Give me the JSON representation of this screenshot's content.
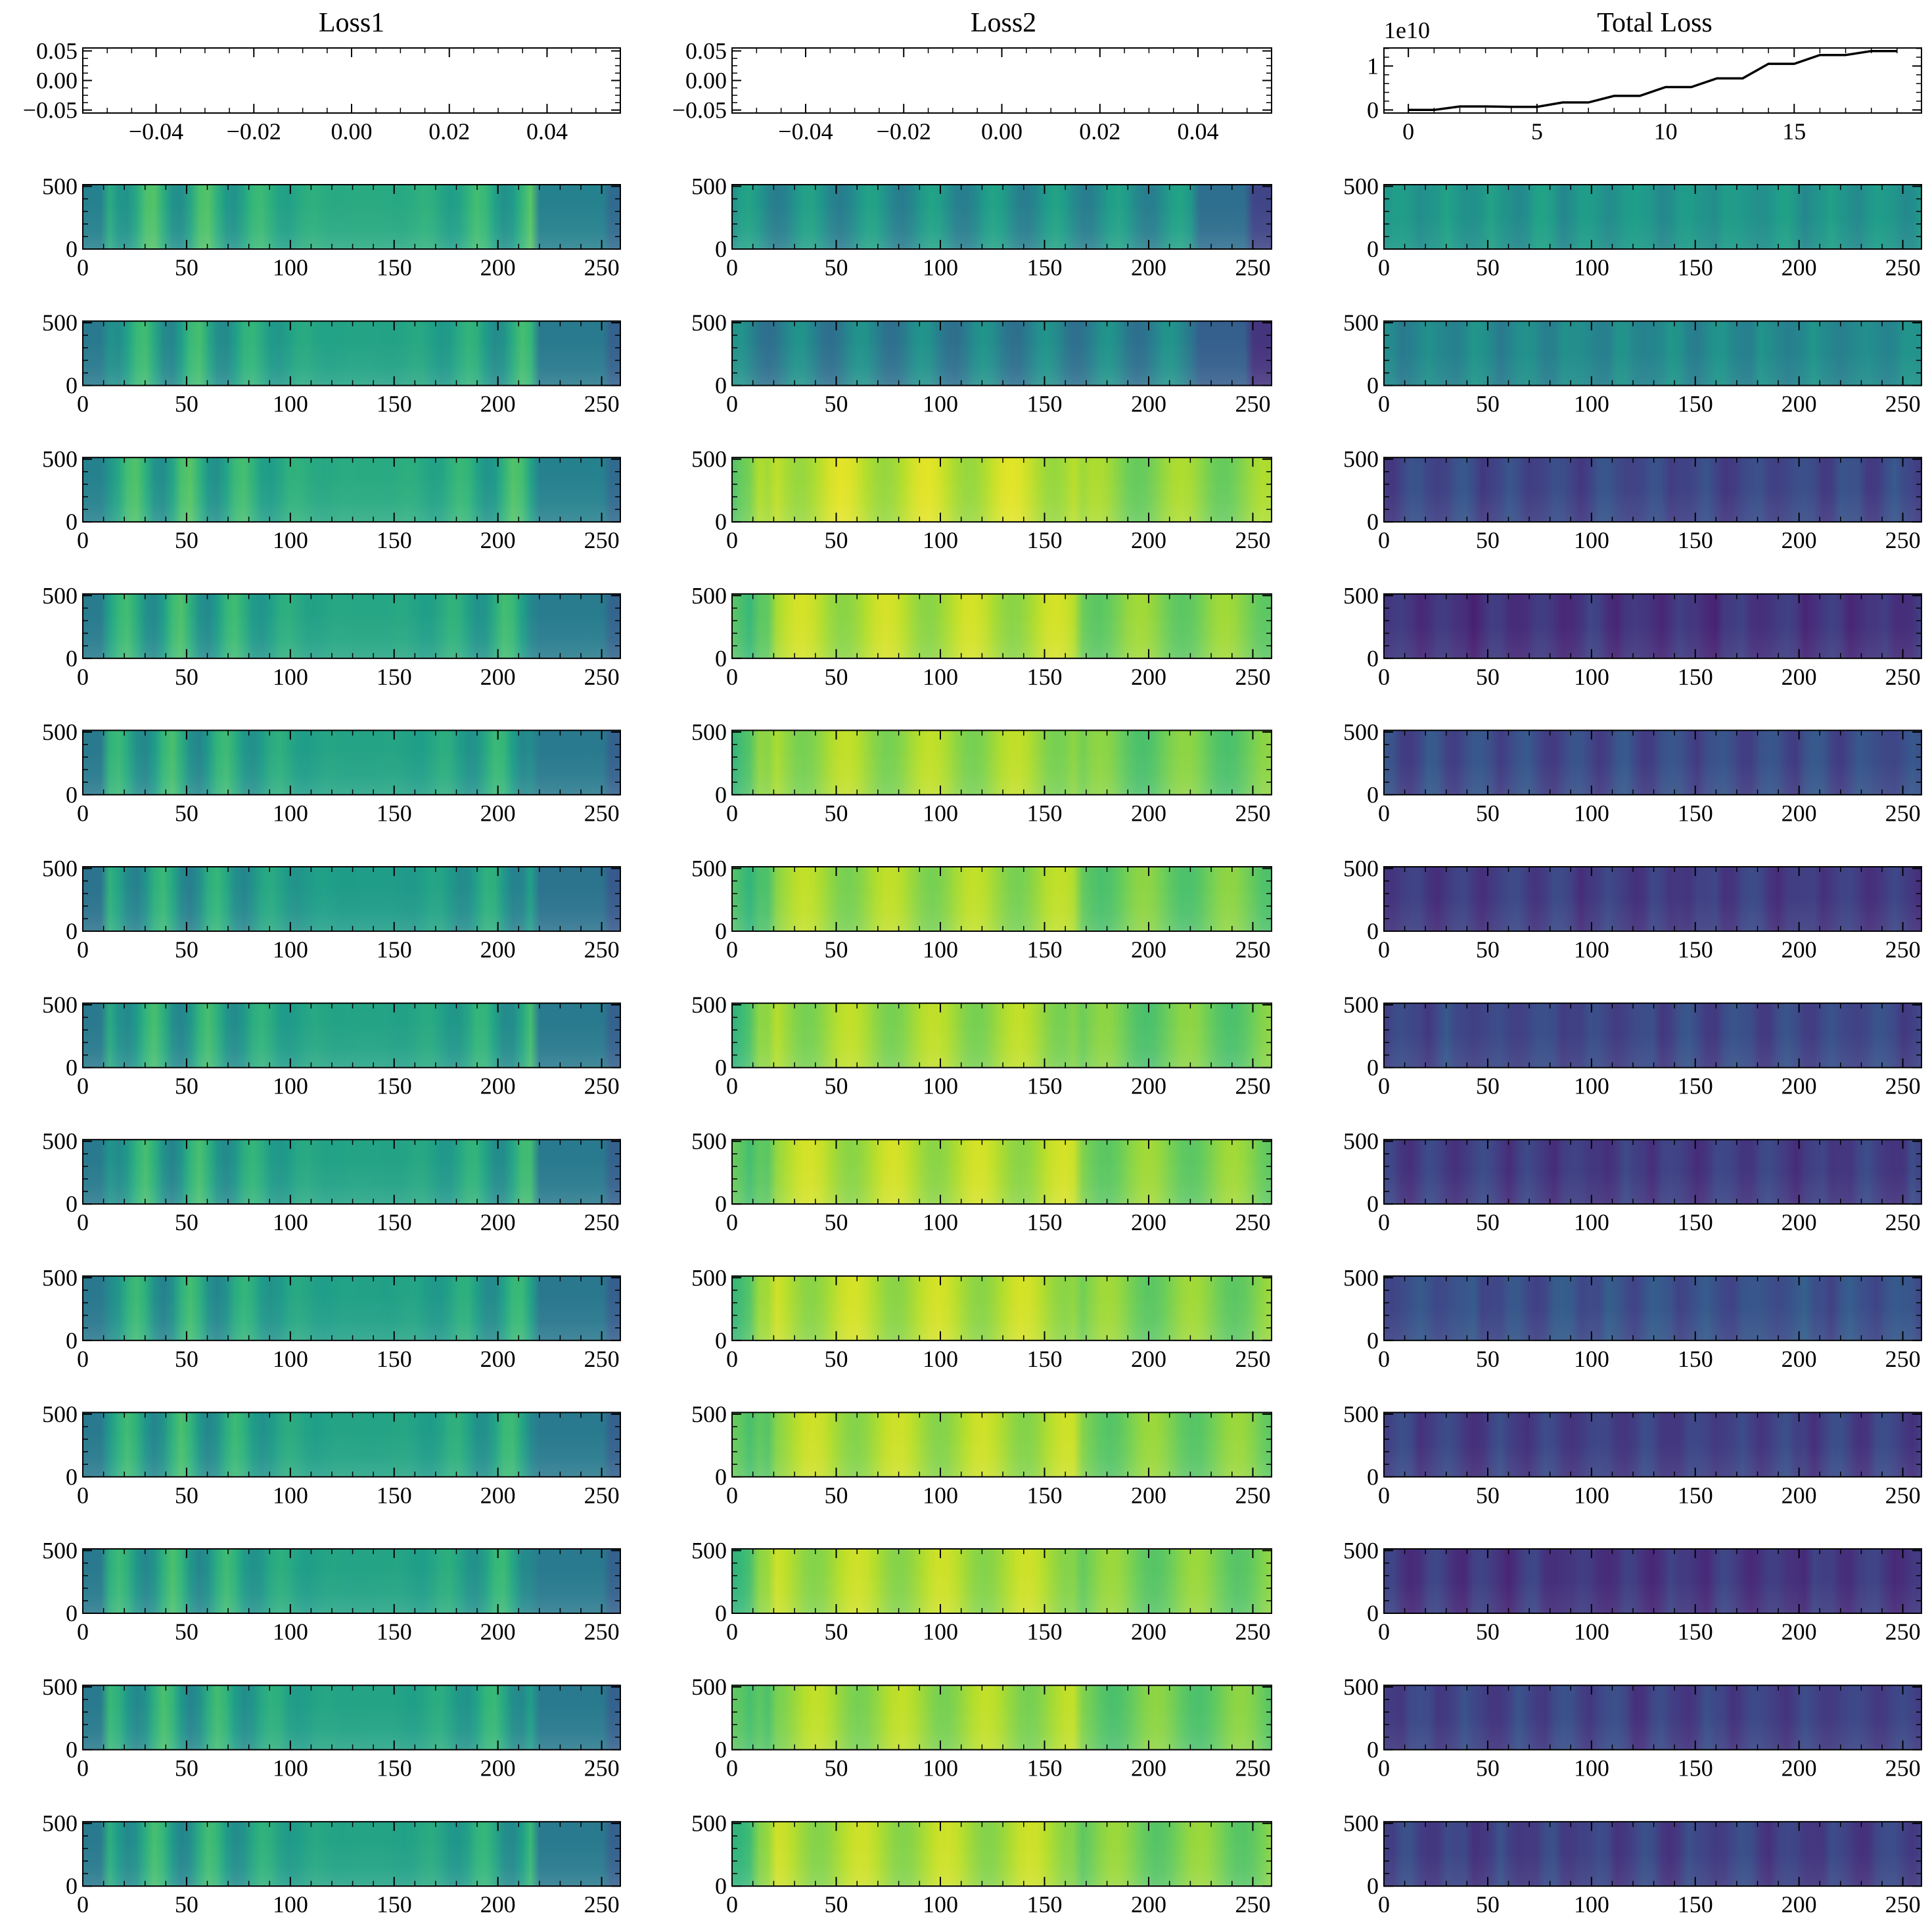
{
  "column_titles": [
    "Loss1",
    "Loss2",
    "Total Loss"
  ],
  "colors": {
    "colormap": [
      "#440154",
      "#482878",
      "#3e4989",
      "#31688e",
      "#26828e",
      "#1f9e89",
      "#35b779",
      "#6ece58",
      "#b5de2b",
      "#fde725"
    ],
    "line": "#000000",
    "axis": "#000000"
  },
  "chart_data": [
    {
      "type": "line",
      "panel": "Loss1 (top)",
      "title": "Loss1",
      "series": [],
      "xlim": [
        -0.055,
        0.055
      ],
      "ylim": [
        -0.055,
        0.055
      ],
      "xticks": [
        -0.04,
        -0.02,
        0.0,
        0.02,
        0.04
      ],
      "xtick_labels": [
        "−0.04",
        "−0.02",
        "0.00",
        "0.02",
        "0.04"
      ],
      "yticks": [
        -0.05,
        0.0,
        0.05
      ],
      "ytick_labels": [
        "−0.05",
        "0.00",
        "0.05"
      ]
    },
    {
      "type": "line",
      "panel": "Loss2 (top)",
      "title": "Loss2",
      "series": [],
      "xlim": [
        -0.055,
        0.055
      ],
      "ylim": [
        -0.055,
        0.055
      ],
      "xticks": [
        -0.04,
        -0.02,
        0.0,
        0.02,
        0.04
      ],
      "xtick_labels": [
        "−0.04",
        "−0.02",
        "0.00",
        "0.02",
        "0.04"
      ],
      "yticks": [
        -0.05,
        0.0,
        0.05
      ],
      "ytick_labels": [
        "−0.05",
        "0.00",
        "0.05"
      ]
    },
    {
      "type": "line",
      "panel": "Total Loss (top)",
      "title": "Total Loss",
      "offset_text": "1e10",
      "series": [
        {
          "x": [
            0,
            1,
            2,
            3,
            4,
            5,
            6,
            7,
            8,
            9,
            10,
            11,
            12,
            13,
            14,
            15,
            16,
            17,
            18,
            19
          ],
          "values": [
            0.0,
            0.0,
            0.08,
            0.08,
            0.07,
            0.07,
            0.17,
            0.17,
            0.32,
            0.32,
            0.52,
            0.52,
            0.72,
            0.72,
            1.05,
            1.05,
            1.25,
            1.25,
            1.34,
            1.34
          ]
        }
      ],
      "xlim": [
        -0.95,
        19.95
      ],
      "ylim": [
        -0.07,
        1.41
      ],
      "xticks": [
        0,
        5,
        10,
        15
      ],
      "xtick_labels": [
        "0",
        "5",
        "10",
        "15"
      ],
      "yticks": [
        0,
        1
      ],
      "ytick_labels": [
        "0",
        "1"
      ]
    },
    {
      "type": "heatmap",
      "columns": [
        "Loss1",
        "Loss2",
        "Total Loss"
      ],
      "rows": 13,
      "shape": [
        513,
        259
      ],
      "xlim": [
        0,
        259
      ],
      "ylim": [
        0,
        513
      ],
      "xticks": [
        0,
        50,
        100,
        150,
        200,
        250
      ],
      "xtick_labels": [
        "0",
        "50",
        "100",
        "150",
        "200",
        "250"
      ],
      "yticks": [
        0,
        500
      ],
      "ytick_labels": [
        "0",
        "500"
      ],
      "mean_level": [
        [
          0.56,
          0.46,
          0.52
        ],
        [
          0.53,
          0.4,
          0.47
        ],
        [
          0.56,
          0.85,
          0.22
        ],
        [
          0.54,
          0.83,
          0.15
        ],
        [
          0.53,
          0.8,
          0.23
        ],
        [
          0.5,
          0.8,
          0.18
        ],
        [
          0.53,
          0.8,
          0.22
        ],
        [
          0.53,
          0.83,
          0.18
        ],
        [
          0.52,
          0.83,
          0.25
        ],
        [
          0.53,
          0.82,
          0.19
        ],
        [
          0.53,
          0.82,
          0.16
        ],
        [
          0.53,
          0.8,
          0.2
        ],
        [
          0.53,
          0.82,
          0.2
        ]
      ]
    }
  ]
}
